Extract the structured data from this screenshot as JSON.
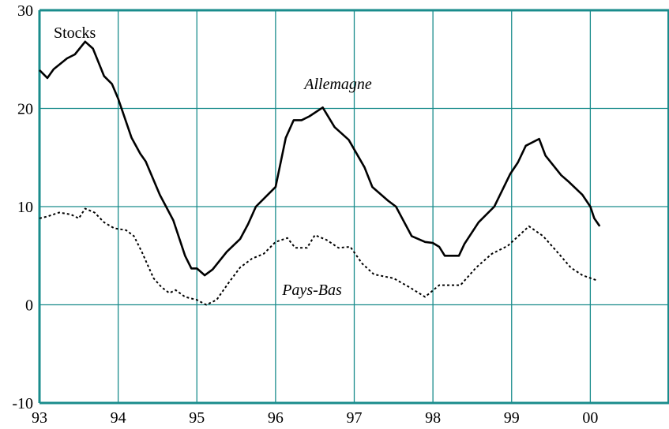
{
  "chart_data": {
    "type": "line",
    "title": "Stocks",
    "xlim": [
      1993,
      2001
    ],
    "xticks": [
      {
        "value": 1993,
        "label": "93"
      },
      {
        "value": 1994,
        "label": "94"
      },
      {
        "value": 1995,
        "label": "95"
      },
      {
        "value": 1996,
        "label": "96"
      },
      {
        "value": 1997,
        "label": "97"
      },
      {
        "value": 1998,
        "label": "98"
      },
      {
        "value": 1999,
        "label": "99"
      },
      {
        "value": 2000,
        "label": "00"
      }
    ],
    "ylim": [
      -10,
      30
    ],
    "yticks": [
      -10,
      0,
      10,
      20,
      30
    ],
    "grid": true,
    "grid_color": "#1a8c8c",
    "series": [
      {
        "name": "Allemagne",
        "color": "#000000",
        "style": "solid",
        "x": [
          1993.0,
          1993.1,
          1993.18,
          1993.35,
          1993.45,
          1993.58,
          1993.68,
          1993.82,
          1993.92,
          1994.0,
          1994.17,
          1994.28,
          1994.35,
          1994.53,
          1994.7,
          1994.85,
          1994.93,
          1995.0,
          1995.1,
          1995.2,
          1995.38,
          1995.55,
          1995.65,
          1995.75,
          1995.9,
          1996.0,
          1996.13,
          1996.23,
          1996.33,
          1996.43,
          1996.6,
          1996.75,
          1996.93,
          1997.13,
          1997.23,
          1997.43,
          1997.53,
          1997.73,
          1997.9,
          1998.0,
          1998.08,
          1998.15,
          1998.33,
          1998.4,
          1998.58,
          1998.78,
          1998.98,
          1999.08,
          1999.18,
          1999.35,
          1999.43,
          1999.63,
          1999.73,
          1999.9,
          2000.0,
          2000.05,
          2000.12
        ],
        "values": [
          23.9,
          23.1,
          24.0,
          25.1,
          25.5,
          26.8,
          26.1,
          23.3,
          22.5,
          21.0,
          17.0,
          15.4,
          14.6,
          11.2,
          8.6,
          5.0,
          3.7,
          3.7,
          3.0,
          3.6,
          5.4,
          6.7,
          8.2,
          10.0,
          11.2,
          12.0,
          17.0,
          18.8,
          18.8,
          19.2,
          20.1,
          18.1,
          16.8,
          14.0,
          12.0,
          10.6,
          10.0,
          7.0,
          6.4,
          6.3,
          5.9,
          5.0,
          5.0,
          6.2,
          8.4,
          10.0,
          13.3,
          14.5,
          16.2,
          16.9,
          15.2,
          13.2,
          12.5,
          11.2,
          10.0,
          8.8,
          8.0
        ]
      },
      {
        "name": "Pays-Bas",
        "color": "#000000",
        "style": "dotted",
        "x": [
          1993.0,
          1993.1,
          1993.25,
          1993.4,
          1993.5,
          1993.58,
          1993.7,
          1993.82,
          1993.95,
          1994.1,
          1994.2,
          1994.3,
          1994.45,
          1994.55,
          1994.65,
          1994.73,
          1994.85,
          1995.0,
          1995.12,
          1995.25,
          1995.4,
          1995.55,
          1995.7,
          1995.85,
          1996.0,
          1996.15,
          1996.25,
          1996.4,
          1996.5,
          1996.65,
          1996.8,
          1996.95,
          1997.1,
          1997.25,
          1997.5,
          1997.7,
          1997.9,
          1998.08,
          1998.35,
          1998.55,
          1998.75,
          1998.95,
          1999.22,
          1999.4,
          1999.6,
          1999.75,
          1999.9,
          2000.08
        ],
        "values": [
          8.8,
          9.0,
          9.4,
          9.2,
          8.8,
          9.8,
          9.4,
          8.4,
          7.8,
          7.6,
          7.0,
          5.4,
          2.7,
          1.8,
          1.2,
          1.5,
          0.8,
          0.5,
          0.0,
          0.5,
          2.2,
          3.8,
          4.7,
          5.2,
          6.4,
          6.8,
          5.8,
          5.8,
          7.1,
          6.6,
          5.8,
          5.9,
          4.2,
          3.1,
          2.7,
          1.8,
          0.8,
          2.0,
          2.0,
          3.8,
          5.2,
          6.0,
          8.0,
          7.0,
          5.2,
          3.8,
          3.0,
          2.5
        ]
      }
    ]
  }
}
